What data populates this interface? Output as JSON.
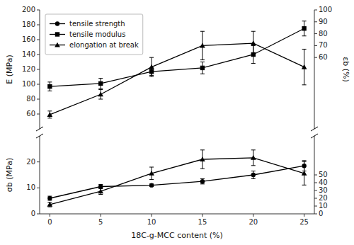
{
  "chart_data": [
    {
      "type": "line",
      "xlabel": "18C-g-MCC content (%)",
      "ylabel": "σb (MPa)",
      "x": [
        0,
        5,
        10,
        15,
        20,
        25
      ],
      "xlim": [
        -1,
        26
      ],
      "xticks": [
        0,
        5,
        10,
        15,
        20,
        25
      ],
      "ylim": [
        0,
        30
      ],
      "yticks": [
        0,
        10,
        20
      ],
      "y2lim": [
        0,
        100
      ],
      "y2ticks": [
        0,
        10,
        20,
        30,
        40,
        50
      ],
      "series": [
        {
          "name": "tensile strength",
          "color": "black",
          "marker": "circle",
          "line_style": "solid",
          "values": [
            6.0,
            10.5,
            11.0,
            12.5,
            15.0,
            18.5
          ],
          "errors": [
            0.8,
            0.8,
            0.5,
            1.0,
            1.5,
            2.0
          ]
        },
        {
          "axis": "y2",
          "color": "black",
          "marker": "triangle",
          "line_style": "solid",
          "values": [
            12,
            29,
            52,
            70,
            72,
            52
          ],
          "errors": [
            3,
            4,
            8,
            12,
            10,
            15
          ]
        }
      ]
    },
    {
      "type": "line",
      "ylabel": "E (MPa)",
      "y2label": "εb (%)",
      "x": [
        0,
        5,
        10,
        15,
        20,
        25
      ],
      "xlim": [
        -1,
        26
      ],
      "tick_labels": "y",
      "ylim": [
        40,
        200
      ],
      "yticks": [
        60,
        80,
        100,
        120,
        140,
        160,
        180,
        200
      ],
      "y2lim": [
        0,
        100
      ],
      "y2ticks": [
        60,
        70,
        80,
        90,
        100
      ],
      "legend": "upper left",
      "series": [
        {
          "name": "tensile modulus",
          "color": "black",
          "marker": "square",
          "line_style": "solid",
          "values": [
            97,
            101,
            117,
            122,
            140,
            175
          ],
          "errors": [
            6,
            7,
            5,
            8,
            12,
            10
          ]
        },
        {
          "name": "elongation at break",
          "axis": "y2",
          "color": "black",
          "marker": "triangle",
          "line_style": "solid",
          "values": [
            12,
            29,
            52,
            70,
            72,
            52
          ],
          "errors": [
            3,
            4,
            8,
            12,
            10,
            15
          ]
        }
      ]
    }
  ]
}
